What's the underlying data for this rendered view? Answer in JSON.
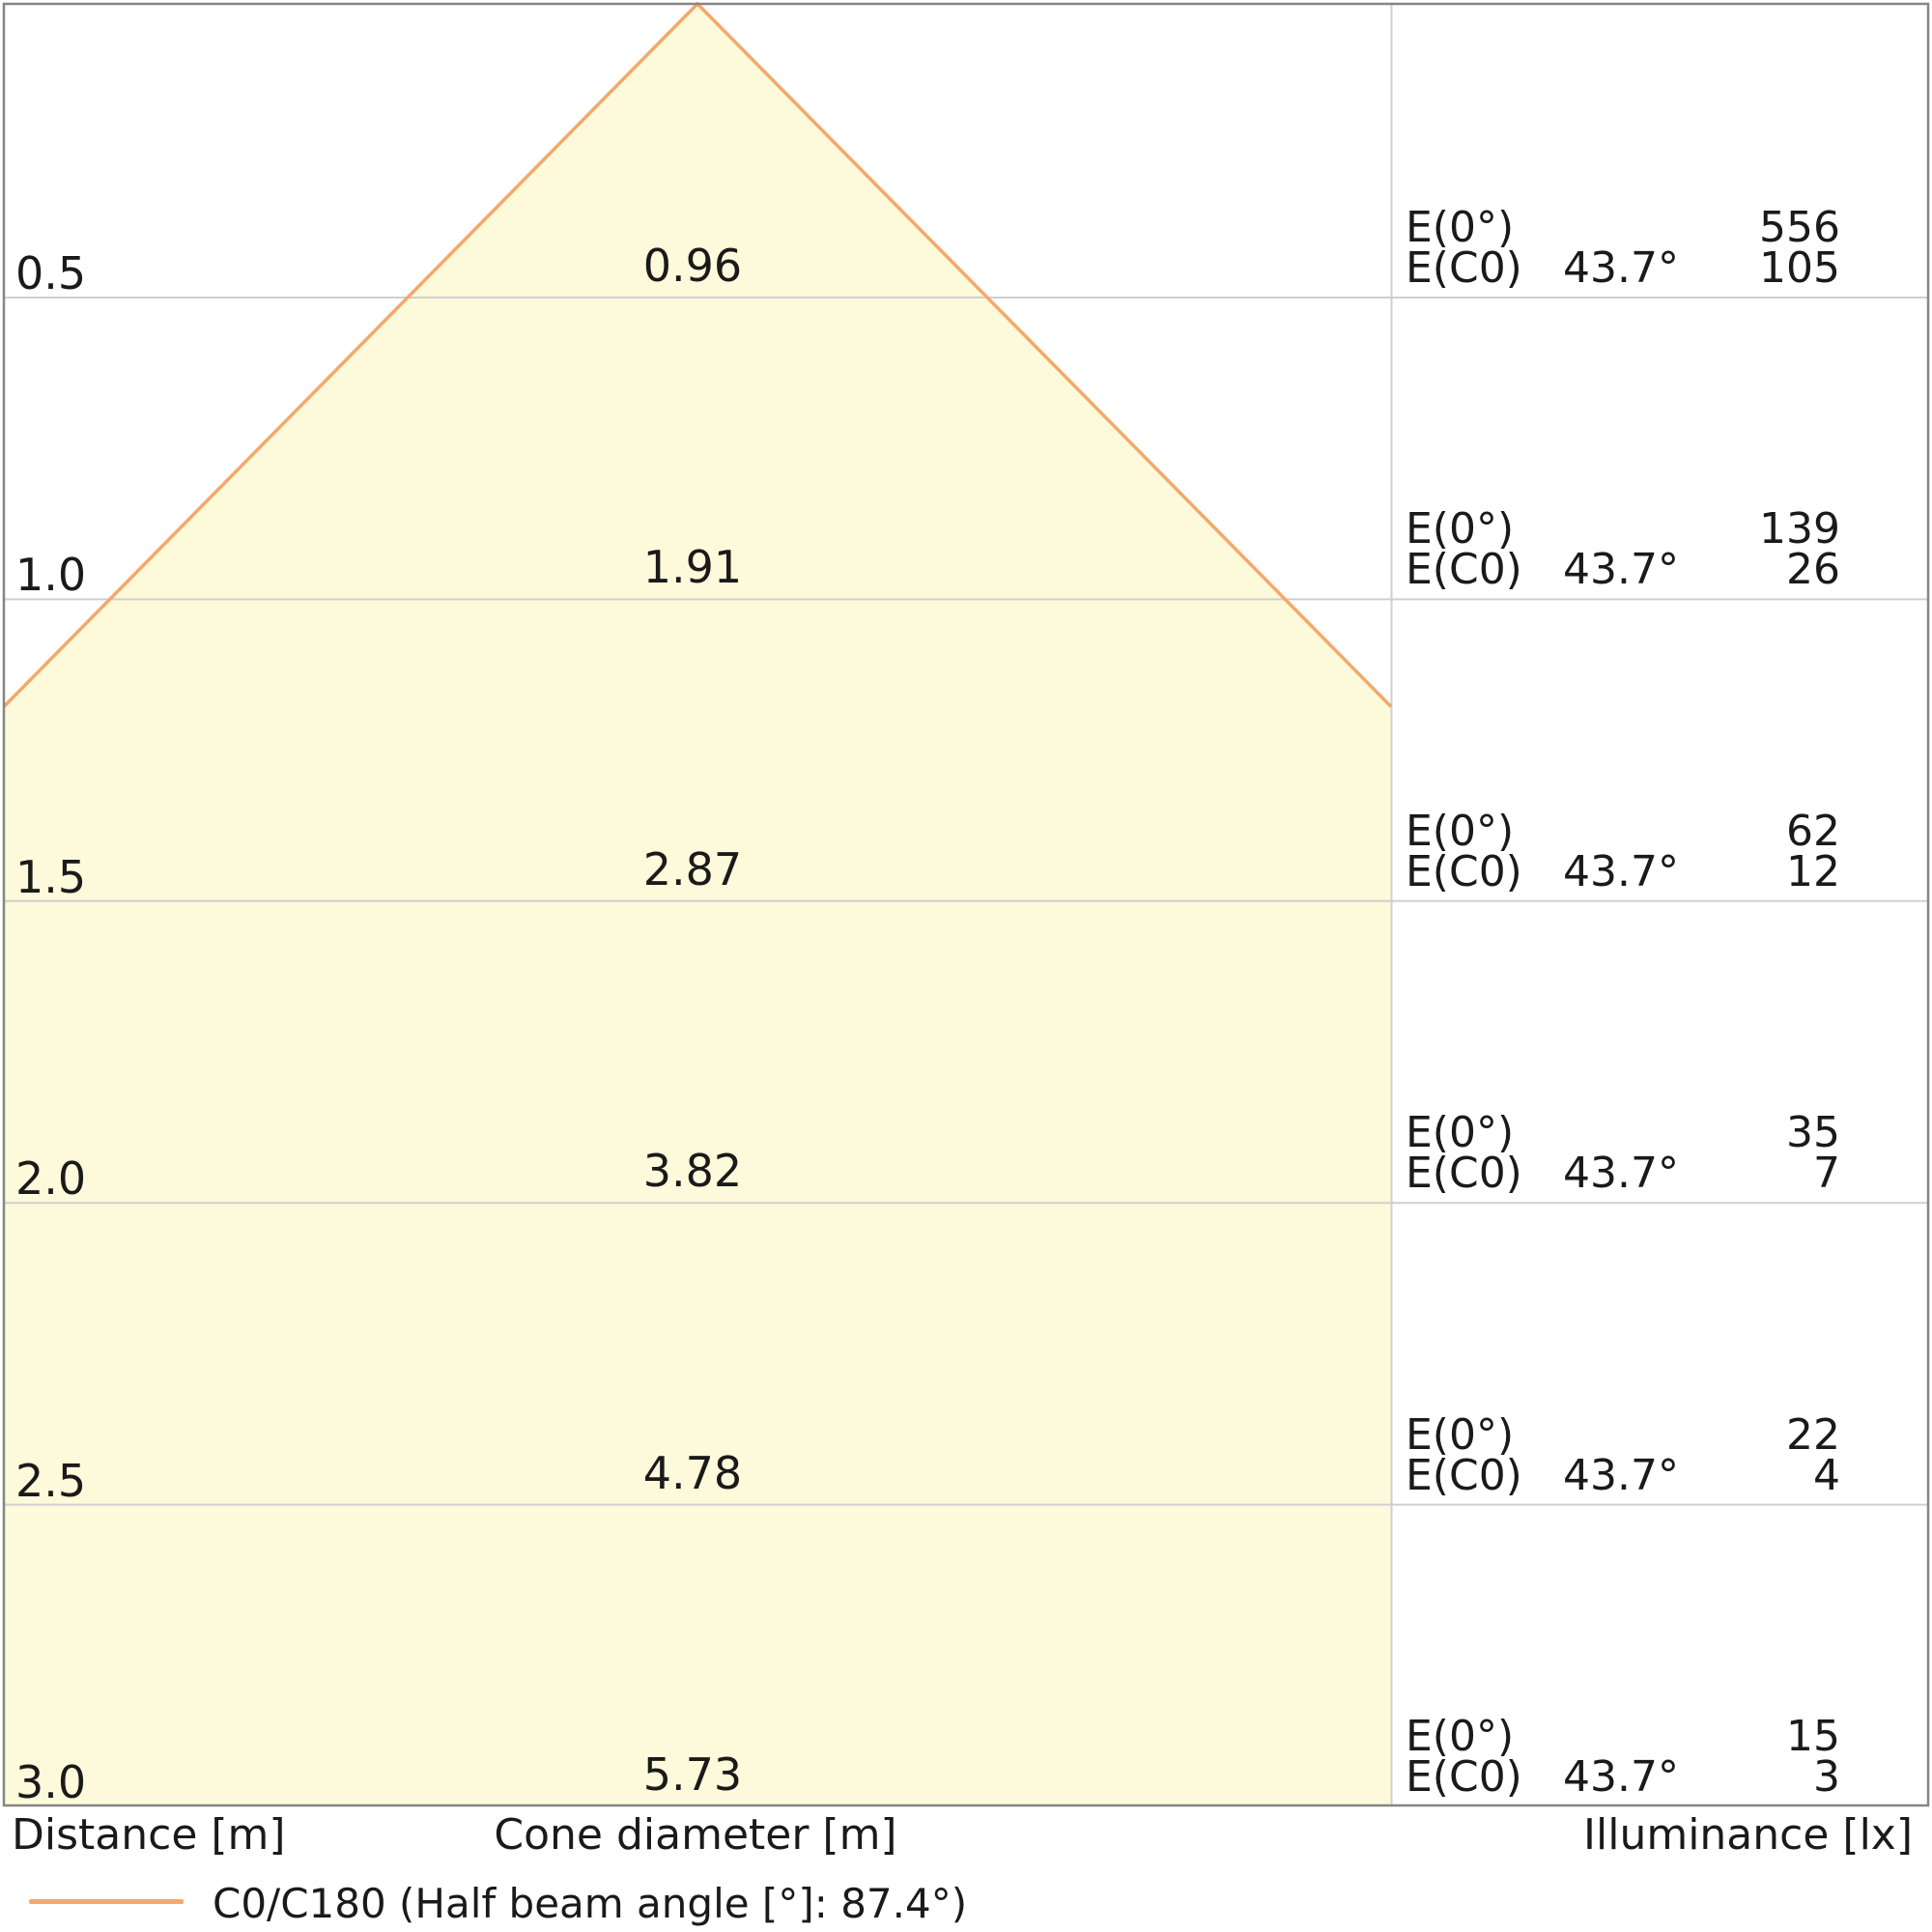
{
  "chart_data": {
    "type": "area",
    "subtype": "light-cone-diagram",
    "title": "",
    "legend_label": "C0/C180 (Half beam angle [°]: 87.4°)",
    "legend_position": "bottom-left",
    "half_beam_angle_deg": 87.4,
    "beam_angle_column_label": "43.7°",
    "E0_row_label": "E(0°)",
    "EC0_row_label": "E(C0)",
    "distance_axis_label": "Distance [m]",
    "cone_diameter_axis_label": "Cone diameter [m]",
    "illuminance_axis_label": "Illuminance [lx]",
    "distance_labels": [
      "0.5",
      "1.0",
      "1.5",
      "2.0",
      "2.5",
      "3.0"
    ],
    "distances_m": [
      0.5,
      1.0,
      1.5,
      2.0,
      2.5,
      3.0
    ],
    "cone_diameter_labels": [
      "0.96",
      "1.91",
      "2.87",
      "3.82",
      "4.78",
      "5.73"
    ],
    "cone_diameters_m": [
      0.96,
      1.91,
      2.87,
      3.82,
      4.78,
      5.73
    ],
    "E0_lx": [
      556,
      139,
      62,
      35,
      22,
      15
    ],
    "EC0_lx": [
      105,
      26,
      12,
      7,
      4,
      3
    ],
    "grid": true,
    "colors": {
      "cone_fill": "#fcfada",
      "cone_line": "#f5a86a",
      "grid_line": "#cfcfcf",
      "border_line": "#868686",
      "text": "#1a1a1a"
    }
  },
  "footer": {
    "distance_label": "Distance [m]",
    "cone_diameter_label": "Cone diameter [m]",
    "illuminance_label": "Illuminance [lx]"
  },
  "legend": {
    "label": "C0/C180 (Half beam angle [°]: 87.4°)"
  }
}
